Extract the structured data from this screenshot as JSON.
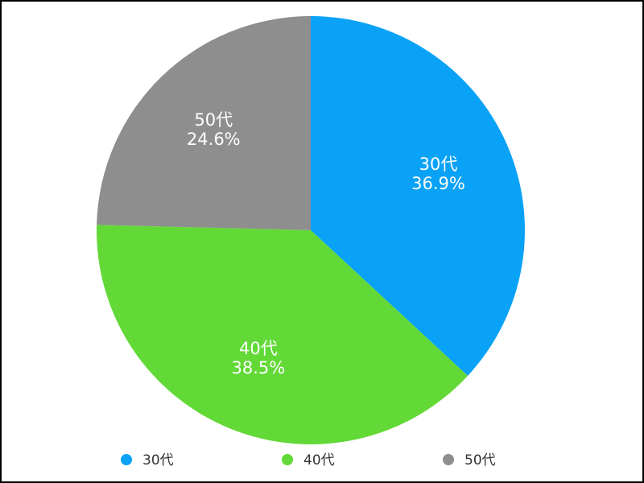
{
  "chart_data": {
    "type": "pie",
    "categories": [
      "30代",
      "40代",
      "50代"
    ],
    "values": [
      36.9,
      38.5,
      24.6
    ],
    "value_labels": [
      "36.9%",
      "38.5%",
      "24.6%"
    ],
    "colors": [
      "#0aa2f7",
      "#62d937",
      "#8e8e8e"
    ],
    "legend": "bottom"
  }
}
